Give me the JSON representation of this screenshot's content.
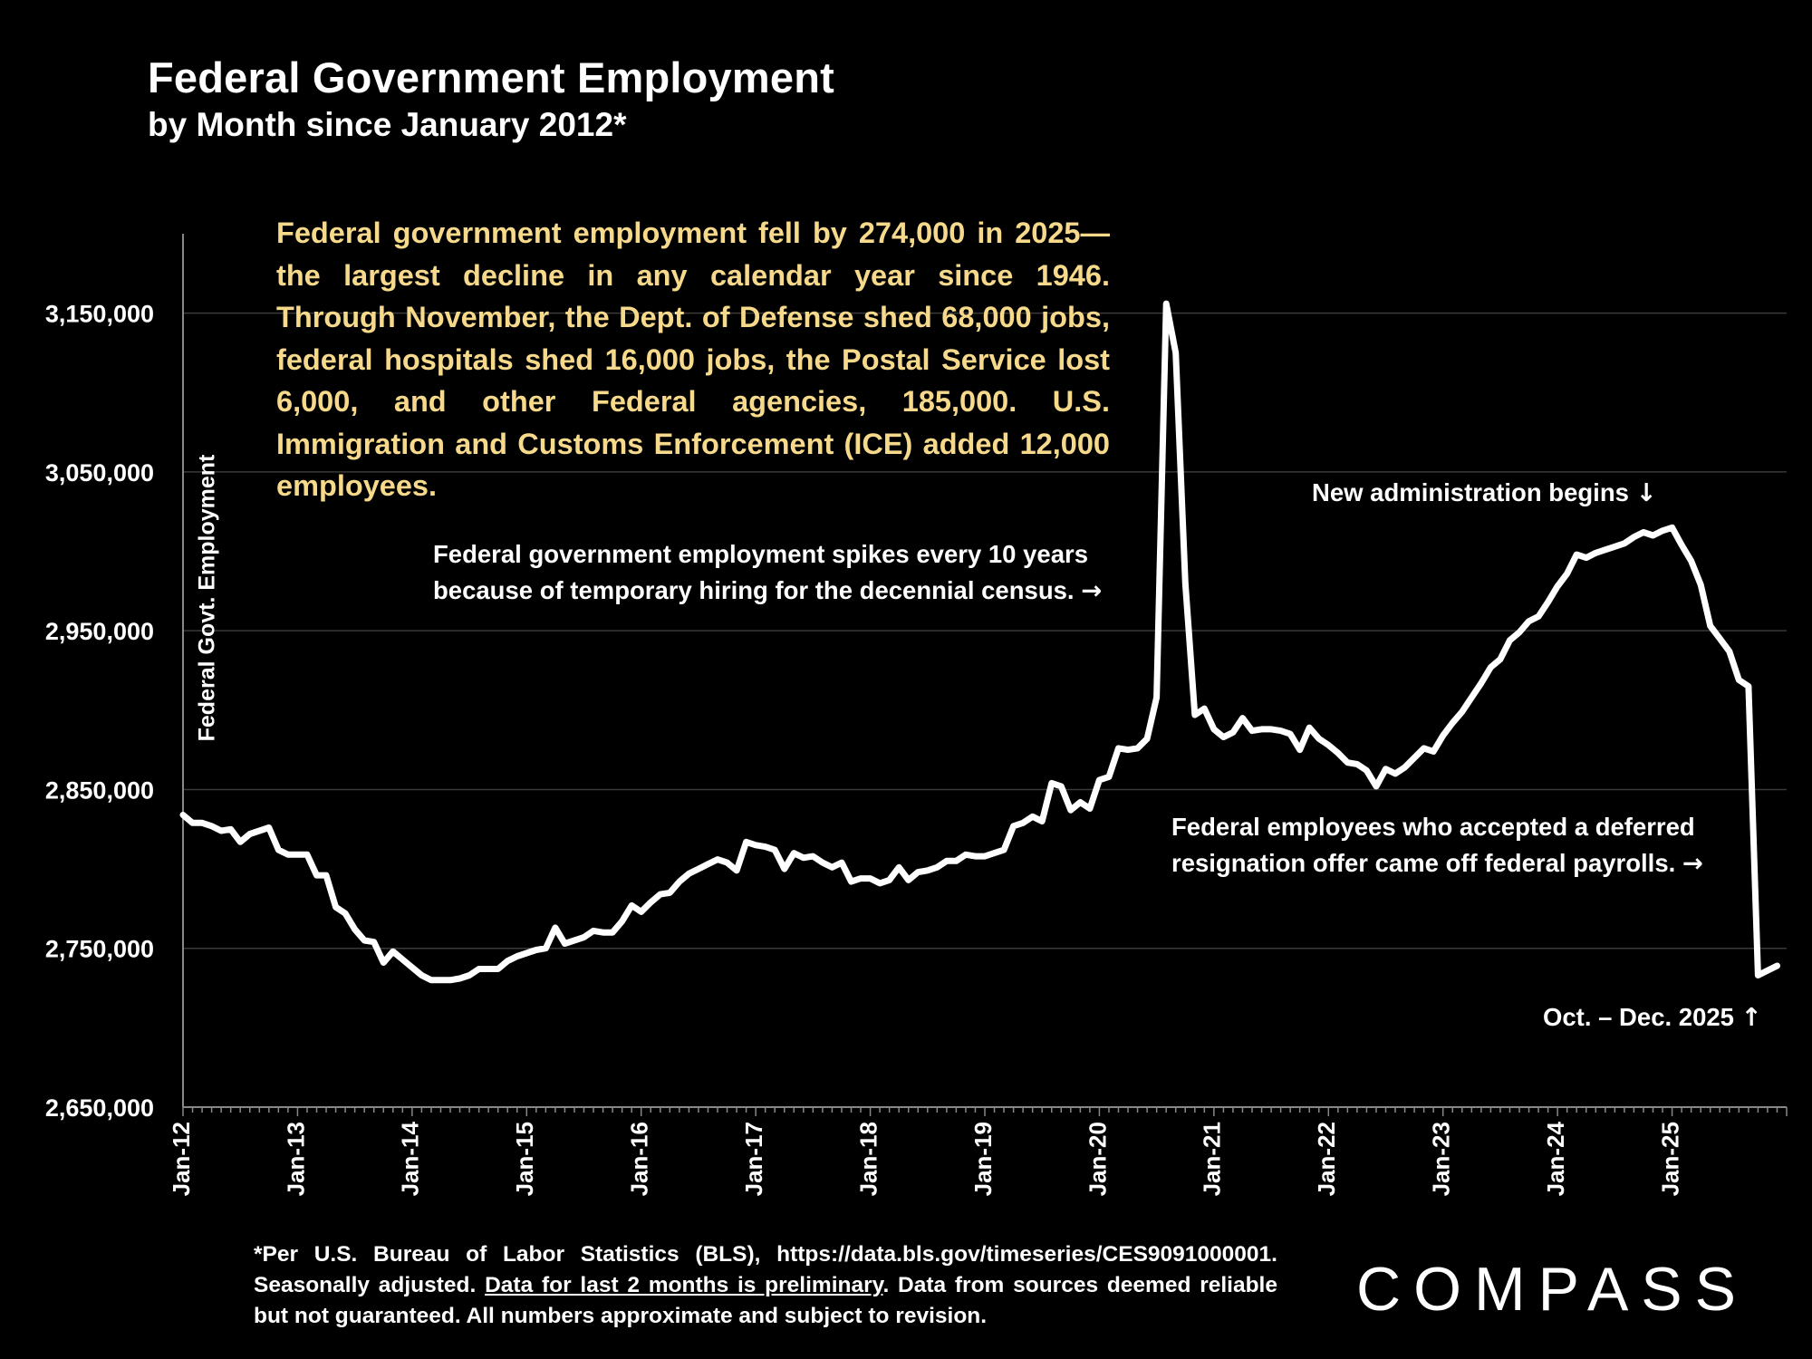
{
  "header": {
    "title": "Federal Government Employment",
    "subtitle": "by Month since January 2012*"
  },
  "callout": {
    "text": "Federal government employment fell by 274,000 in 2025—the largest decline in any calendar year since 1946. Through November, the Dept. of Defense shed 68,000 jobs, federal hospitals shed 16,000 jobs, the Postal Service lost 6,000, and other Federal agencies, 185,000. U.S. Immigration and Customs Enforcement (ICE) added 12,000 employees."
  },
  "annotations": {
    "census_line1": "Federal government employment spikes every 10 years",
    "census_line2": "because of temporary hiring for the decennial census.",
    "admin": "New administration begins",
    "deferred_line1": "Federal employees who accepted a deferred",
    "deferred_line2": "resignation offer came off federal payrolls.",
    "octdec": "Oct. – Dec. 2025",
    "arrow_right": "→",
    "arrow_down": "↓",
    "arrow_up": "↑"
  },
  "footnote": {
    "part1": "*Per U.S. Bureau of Labor Statistics (BLS), https://data.bls.gov/timeseries/CES9091000001. Seasonally adjusted. ",
    "underlined": "Data for last 2 months is preliminary",
    "part2": ". Data from sources deemed reliable but not guaranteed. All numbers approximate and subject to revision."
  },
  "logo": {
    "text": "COMPASS"
  },
  "chart_data": {
    "type": "line",
    "title": "Federal Government Employment",
    "subtitle": "by Month since January 2012*",
    "xlabel": "",
    "ylabel": "Federal Govt. Employment",
    "ylim": [
      2650000,
      3200000
    ],
    "yticks": [
      2650000,
      2750000,
      2850000,
      2950000,
      3050000,
      3150000
    ],
    "ytick_labels": [
      "2,650,000",
      "2,750,000",
      "2,850,000",
      "2,950,000",
      "3,050,000",
      "3,150,000"
    ],
    "xtick_labels": [
      "Jan-12",
      "Jan-13",
      "Jan-14",
      "Jan-15",
      "Jan-16",
      "Jan-17",
      "Jan-18",
      "Jan-19",
      "Jan-20",
      "Jan-21",
      "Jan-22",
      "Jan-23",
      "Jan-24",
      "Jan-25"
    ],
    "xtick_month_index": [
      0,
      12,
      24,
      36,
      48,
      60,
      72,
      84,
      96,
      108,
      120,
      132,
      144,
      156
    ],
    "grid": true,
    "line_color": "#ffffff",
    "series": [
      {
        "name": "Federal Government Employment",
        "start": "Jan-12",
        "values": [
          2834000,
          2829000,
          2829000,
          2827000,
          2824000,
          2825000,
          2817000,
          2822000,
          2824000,
          2826000,
          2812000,
          2809000,
          2809000,
          2809000,
          2796000,
          2796000,
          2776000,
          2772000,
          2762000,
          2755000,
          2754000,
          2741000,
          2748000,
          2743000,
          2738000,
          2733000,
          2730000,
          2730000,
          2730000,
          2731000,
          2733000,
          2737000,
          2737000,
          2737000,
          2742000,
          2745000,
          2747000,
          2749000,
          2750000,
          2763000,
          2753000,
          2755000,
          2757000,
          2761000,
          2760000,
          2760000,
          2767000,
          2777000,
          2773000,
          2779000,
          2784000,
          2785000,
          2792000,
          2797000,
          2800000,
          2803000,
          2806000,
          2804000,
          2799000,
          2817000,
          2815000,
          2814000,
          2812000,
          2800000,
          2810000,
          2807000,
          2808000,
          2804000,
          2801000,
          2804000,
          2792000,
          2794000,
          2794000,
          2791000,
          2793000,
          2801000,
          2793000,
          2798000,
          2799000,
          2801000,
          2805000,
          2805000,
          2809000,
          2808000,
          2808000,
          2810000,
          2812000,
          2827000,
          2829000,
          2833000,
          2830000,
          2854000,
          2852000,
          2837000,
          2842000,
          2838000,
          2856000,
          2858000,
          2876000,
          2875000,
          2876000,
          2882000,
          2908000,
          3156000,
          3125000,
          2980000,
          2897000,
          2901000,
          2888000,
          2883000,
          2886000,
          2895000,
          2887000,
          2888000,
          2888000,
          2887000,
          2885000,
          2875000,
          2889000,
          2882000,
          2878000,
          2873000,
          2867000,
          2866000,
          2862000,
          2852000,
          2863000,
          2860000,
          2864000,
          2870000,
          2876000,
          2874000,
          2884000,
          2892000,
          2899000,
          2908000,
          2917000,
          2927000,
          2932000,
          2944000,
          2949000,
          2956000,
          2959000,
          2968000,
          2978000,
          2986000,
          2998000,
          2996000,
          2999000,
          3001000,
          3003000,
          3005000,
          3009000,
          3012000,
          3010000,
          3013000,
          3015000,
          3004000,
          2994000,
          2979000,
          2953000,
          2945000,
          2937000,
          2919000,
          2915000,
          2733000,
          2736000,
          2739000
        ]
      }
    ]
  }
}
